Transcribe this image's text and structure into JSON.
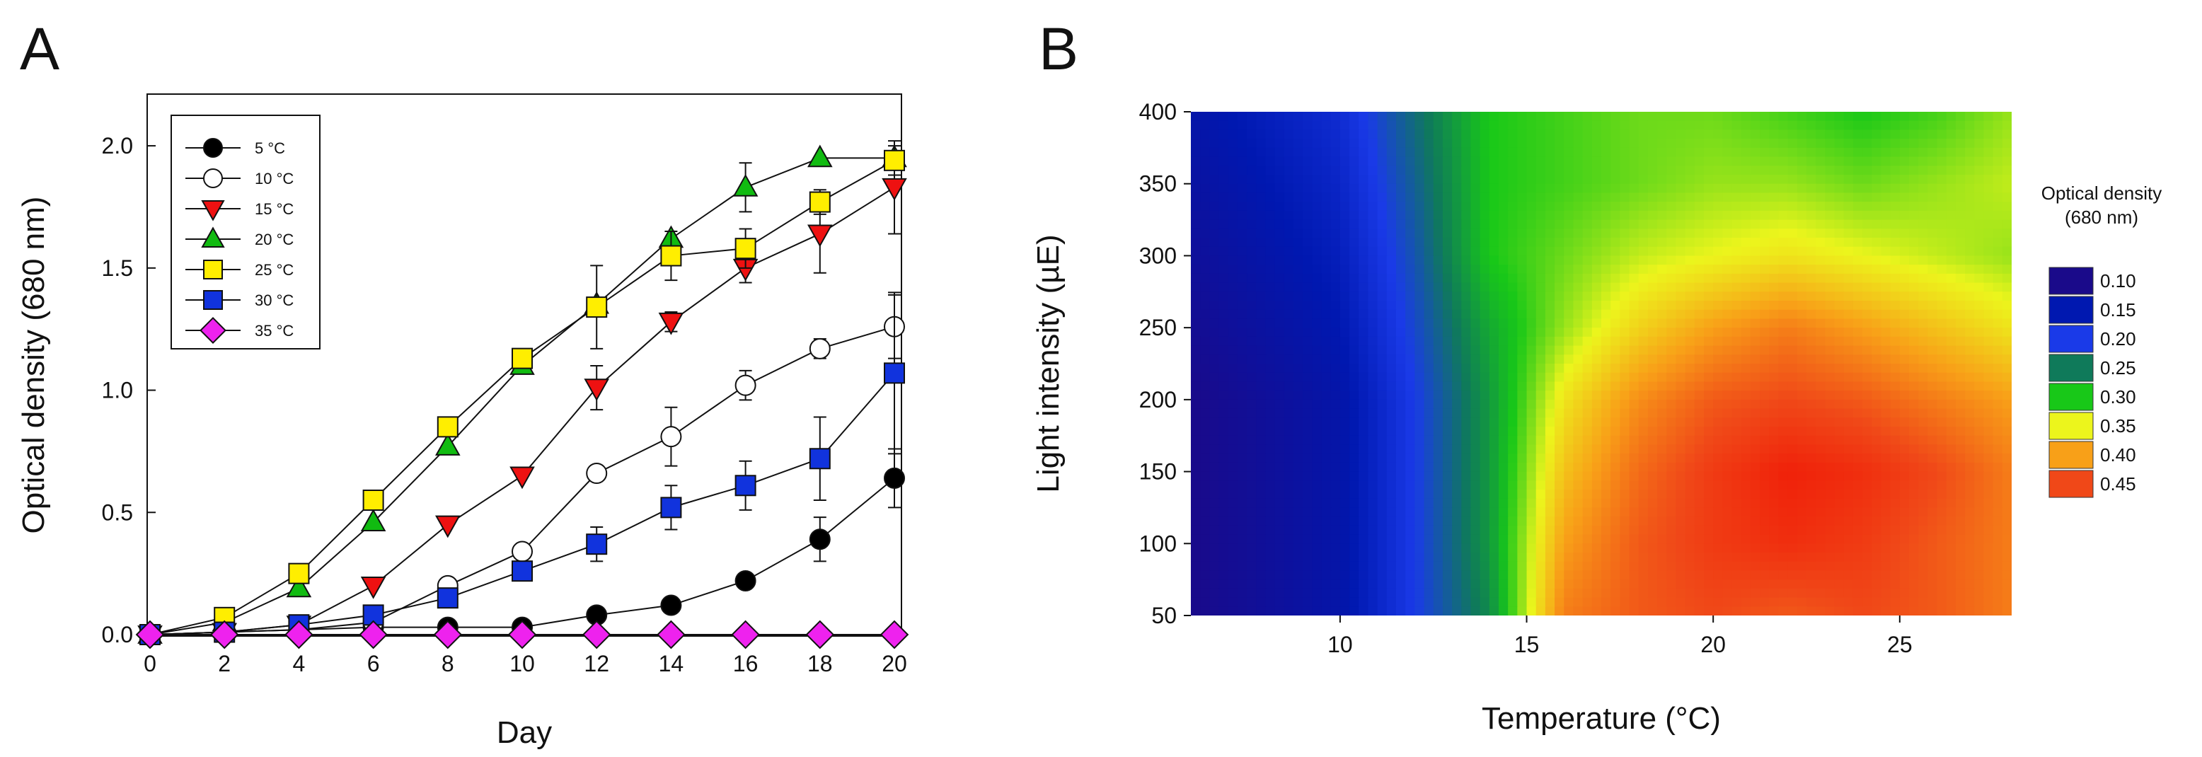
{
  "panel_a_label": "A",
  "panel_b_label": "B",
  "chart_data": [
    {
      "type": "line",
      "panel": "A",
      "xlabel": "Day",
      "ylabel": "Optical density (680 nm)",
      "xlim": [
        0,
        20
      ],
      "ylim": [
        0,
        2.2
      ],
      "x": [
        0,
        2,
        4,
        6,
        8,
        10,
        12,
        14,
        16,
        18,
        20
      ],
      "x_tick_labels": [
        "0",
        "2",
        "4",
        "6",
        "8",
        "10",
        "12",
        "14",
        "16",
        "18",
        "20"
      ],
      "y_ticks": [
        0,
        0.5,
        1.0,
        1.5,
        2.0
      ],
      "y_tick_labels": [
        "0.0",
        "0.5",
        "1.0",
        "1.5",
        "2.0"
      ],
      "legend_position": "top-left",
      "series": [
        {
          "name": "5 °C",
          "marker": "circle",
          "fill": "#000000",
          "values": [
            0.0,
            0.01,
            0.02,
            0.03,
            0.03,
            0.03,
            0.08,
            0.12,
            0.22,
            0.39,
            0.64
          ],
          "errors": [
            0,
            0,
            0,
            0,
            0,
            0,
            0,
            0,
            0,
            0.09,
            0.12
          ]
        },
        {
          "name": "10 °C",
          "marker": "circle",
          "fill": "#ffffff",
          "values": [
            0.0,
            0.01,
            0.02,
            0.05,
            0.2,
            0.34,
            0.66,
            0.81,
            1.02,
            1.17,
            1.26
          ],
          "errors": [
            0,
            0,
            0,
            0,
            0,
            0,
            0,
            0.12,
            0.06,
            0.04,
            0.13
          ]
        },
        {
          "name": "15 °C",
          "marker": "triangle-down",
          "fill": "#ee1111",
          "values": [
            0.0,
            0.01,
            0.04,
            0.2,
            0.45,
            0.65,
            1.01,
            1.28,
            1.5,
            1.64,
            1.83
          ],
          "errors": [
            0,
            0,
            0,
            0,
            0,
            0,
            0.09,
            0.04,
            0.06,
            0.16,
            0.19
          ]
        },
        {
          "name": "20 °C",
          "marker": "triangle-up",
          "fill": "#11bb11",
          "values": [
            0.0,
            0.05,
            0.19,
            0.46,
            0.77,
            1.1,
            1.35,
            1.62,
            1.83,
            1.95,
            1.95
          ],
          "errors": [
            0,
            0,
            0,
            0,
            0,
            0,
            0,
            0,
            0.1,
            0,
            0
          ]
        },
        {
          "name": "25 °C",
          "marker": "square",
          "fill": "#ffee00",
          "values": [
            0.0,
            0.07,
            0.25,
            0.55,
            0.85,
            1.13,
            1.34,
            1.55,
            1.58,
            1.77,
            1.94
          ],
          "errors": [
            0,
            0,
            0,
            0,
            0,
            0,
            0.17,
            0.1,
            0.08,
            0.05,
            0.06
          ]
        },
        {
          "name": "30 °C",
          "marker": "square",
          "fill": "#1133dd",
          "values": [
            0.0,
            0.01,
            0.04,
            0.08,
            0.15,
            0.26,
            0.37,
            0.52,
            0.61,
            0.72,
            1.07
          ],
          "errors": [
            0,
            0,
            0,
            0,
            0,
            0,
            0.07,
            0.09,
            0.1,
            0.17,
            0.33
          ]
        },
        {
          "name": "35 °C",
          "marker": "diamond",
          "fill": "#ee22ee",
          "values": [
            0.0,
            0.0,
            0.0,
            0.0,
            0.0,
            0.0,
            0.0,
            0.0,
            0.0,
            0.0,
            0.0
          ],
          "errors": [
            0,
            0,
            0,
            0,
            0,
            0,
            0,
            0,
            0,
            0,
            0
          ]
        }
      ]
    },
    {
      "type": "heatmap",
      "panel": "B",
      "xlabel": "Temperature (°C)",
      "ylabel": "Light intensity (µE)",
      "xlim": [
        6,
        28
      ],
      "ylim": [
        50,
        400
      ],
      "x_ticks": [
        10,
        15,
        20,
        25
      ],
      "x_tick_labels": [
        "10",
        "15",
        "20",
        "25"
      ],
      "y_ticks": [
        50,
        100,
        150,
        200,
        250,
        300,
        350,
        400
      ],
      "y_tick_labels": [
        "50",
        "100",
        "150",
        "200",
        "250",
        "300",
        "350",
        "400"
      ],
      "colorbar_title": [
        "Optical density",
        "(680 nm)"
      ],
      "colorbar_levels": [
        0.1,
        0.15,
        0.2,
        0.25,
        0.3,
        0.35,
        0.4,
        0.45
      ],
      "colorbar_labels": [
        "0.10",
        "0.15",
        "0.20",
        "0.25",
        "0.30",
        "0.35",
        "0.40",
        "0.45"
      ],
      "colorbar_colors": [
        "#1a0a8a",
        "#0018b0",
        "#1a3ae8",
        "#0f7a5a",
        "#18c818",
        "#ecf51c",
        "#f8a018",
        "#f04818"
      ],
      "grid_x": [
        6,
        10,
        12,
        14,
        16,
        18,
        20,
        22,
        24,
        26,
        28
      ],
      "grid_y": [
        50,
        100,
        150,
        200,
        250,
        300,
        350,
        400
      ],
      "z": [
        [
          0.1,
          0.14,
          0.2,
          0.26,
          0.42,
          0.44,
          0.45,
          0.44,
          0.45,
          0.44,
          0.42
        ],
        [
          0.1,
          0.14,
          0.2,
          0.27,
          0.4,
          0.44,
          0.46,
          0.47,
          0.46,
          0.44,
          0.42
        ],
        [
          0.1,
          0.14,
          0.2,
          0.27,
          0.38,
          0.43,
          0.46,
          0.48,
          0.47,
          0.45,
          0.42
        ],
        [
          0.1,
          0.14,
          0.2,
          0.27,
          0.36,
          0.41,
          0.44,
          0.45,
          0.44,
          0.42,
          0.4
        ],
        [
          0.11,
          0.15,
          0.21,
          0.28,
          0.33,
          0.37,
          0.4,
          0.42,
          0.4,
          0.38,
          0.36
        ],
        [
          0.12,
          0.16,
          0.22,
          0.3,
          0.32,
          0.34,
          0.35,
          0.36,
          0.35,
          0.34,
          0.33
        ],
        [
          0.13,
          0.17,
          0.23,
          0.3,
          0.31,
          0.32,
          0.33,
          0.33,
          0.32,
          0.33,
          0.34
        ],
        [
          0.14,
          0.18,
          0.24,
          0.3,
          0.31,
          0.32,
          0.32,
          0.31,
          0.3,
          0.31,
          0.33
        ]
      ]
    }
  ]
}
